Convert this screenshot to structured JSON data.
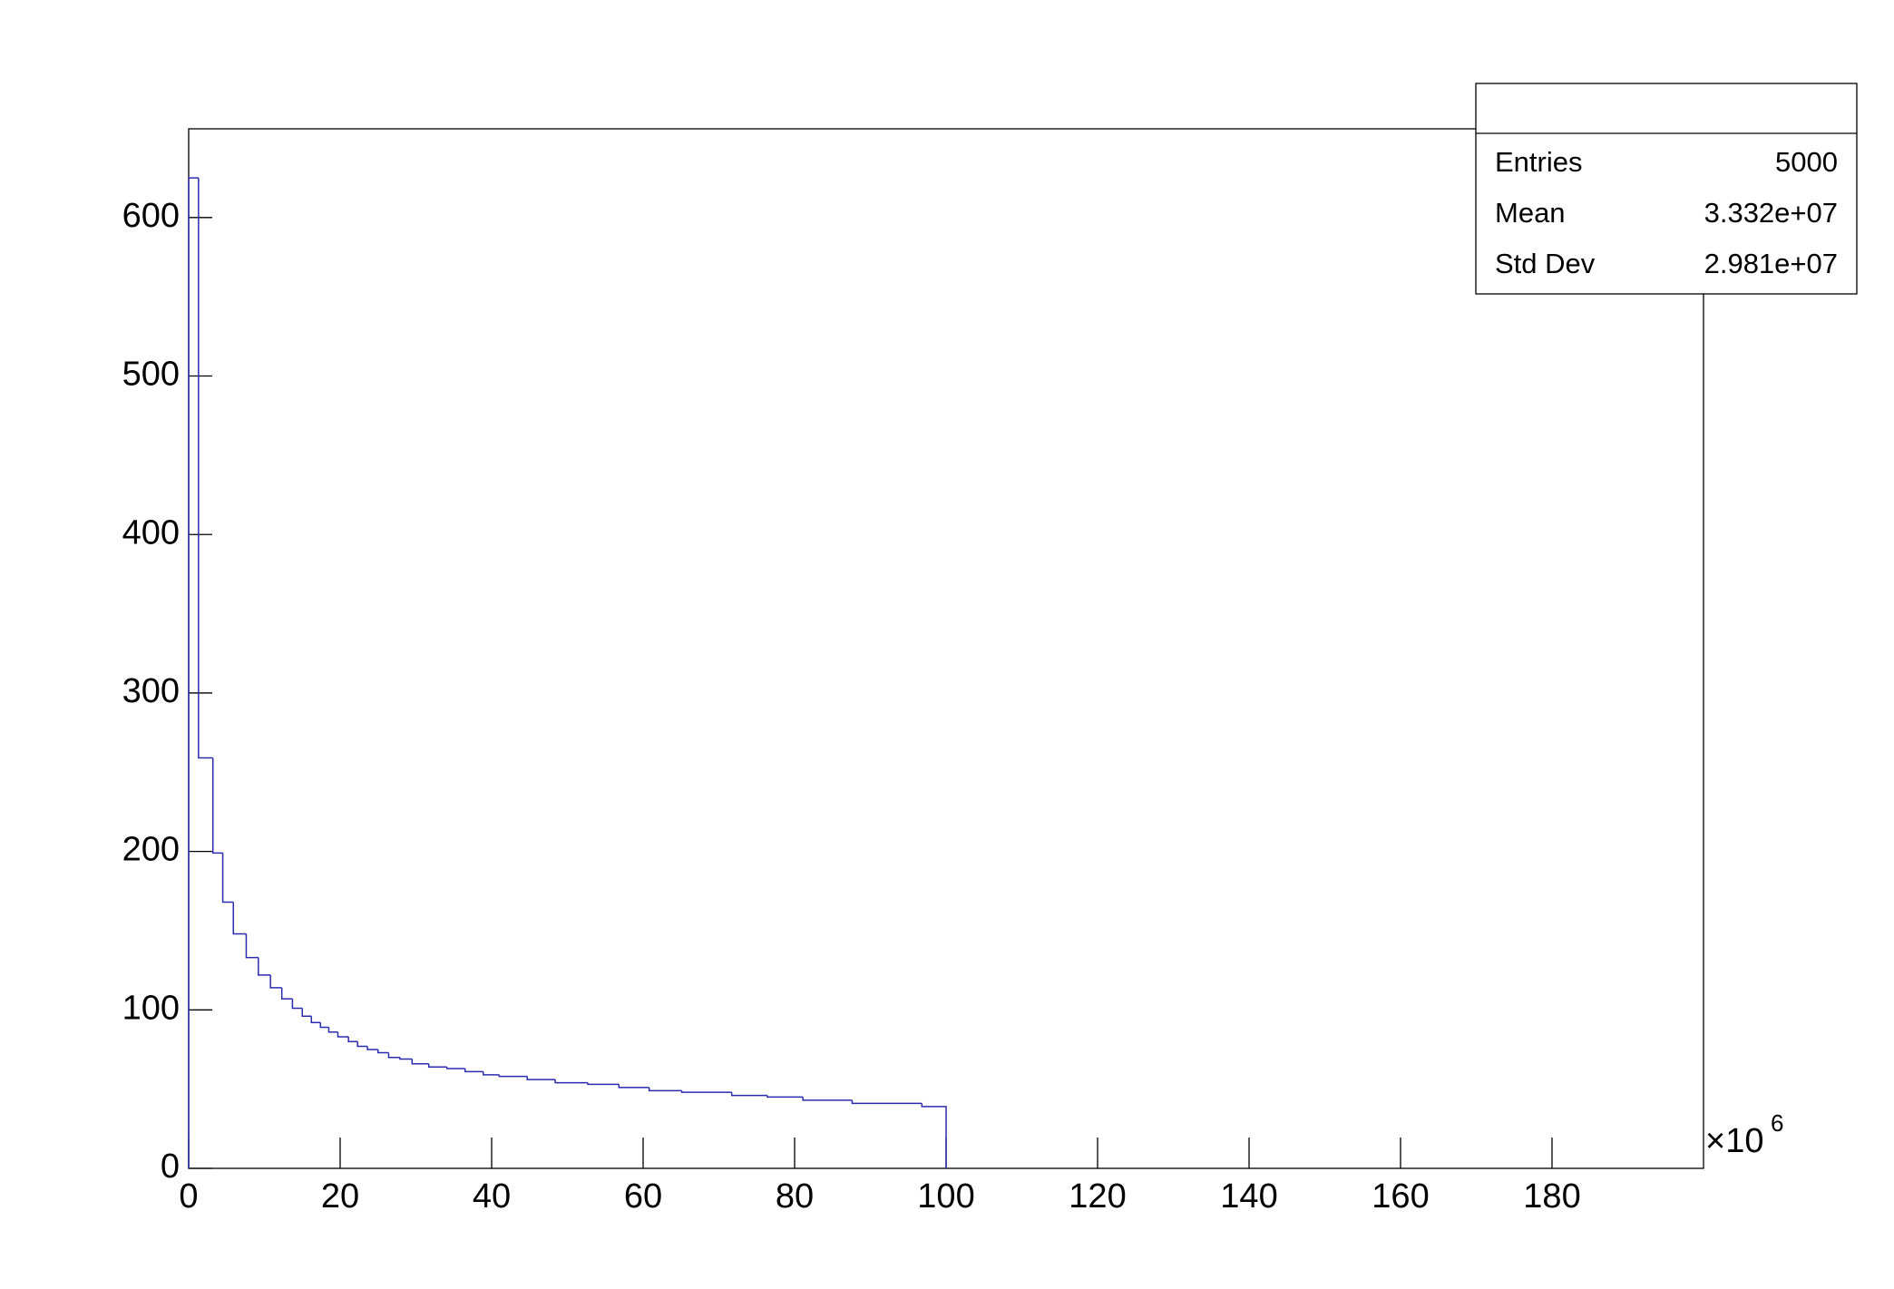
{
  "chart_data": {
    "type": "histogram",
    "bins": [
      0,
      1.3,
      3.2,
      4.5,
      5.9,
      7.6,
      9.2,
      10.8,
      12.3,
      13.7,
      15,
      16.2,
      17.4,
      18.5,
      19.7,
      21.1,
      22.3,
      23.6,
      25,
      26.4,
      27.9,
      29.5,
      31.7,
      34.1,
      36.5,
      38.9,
      41,
      44.7,
      48.4,
      52.7,
      56.8,
      60.8,
      65.1,
      71.7,
      76.4,
      81.1,
      87.6,
      96.8,
      100
    ],
    "counts": [
      625,
      259,
      199,
      168,
      148,
      133,
      122,
      114,
      107,
      101,
      96,
      92,
      89,
      86,
      83,
      80,
      77,
      75,
      73,
      70,
      69,
      66,
      64,
      63,
      61,
      59,
      58,
      56,
      54,
      53,
      51,
      49,
      48,
      46,
      45,
      43,
      41,
      39
    ],
    "color": "#2b2bb0",
    "xlim": [
      0,
      200
    ],
    "xticks": [
      0,
      20,
      40,
      60,
      80,
      100,
      120,
      140,
      160,
      180
    ],
    "ylim": [
      0,
      656
    ],
    "yticks": [
      0,
      100,
      200,
      300,
      400,
      500,
      600
    ],
    "x_multiplier": {
      "base": "×10",
      "exponent": "6"
    },
    "stats": [
      {
        "label": "Entries",
        "value": "5000"
      },
      {
        "label": "Mean",
        "value": "3.332e+07"
      },
      {
        "label": "Std Dev",
        "value": "2.981e+07"
      }
    ]
  }
}
